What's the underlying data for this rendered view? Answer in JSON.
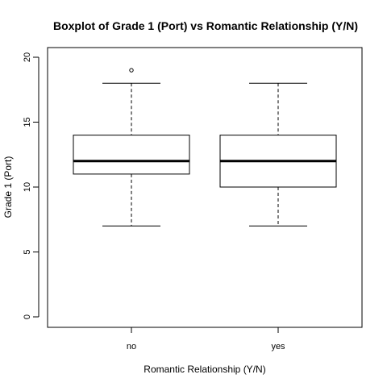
{
  "chart_data": {
    "type": "boxplot",
    "title": "Boxplot of Grade 1 (Port)  vs  Romantic Relationship (Y/N)",
    "xlabel": "Romantic Relationship (Y/N)",
    "ylabel": "Grade 1 (Port)",
    "ylim": [
      0,
      20
    ],
    "yticks": [
      "0",
      "5",
      "10",
      "15",
      "20"
    ],
    "categories": [
      "no",
      "yes"
    ],
    "boxes": [
      {
        "category": "no",
        "min": 7,
        "q1": 11,
        "median": 12,
        "q3": 14,
        "max": 18,
        "outliers": [
          19
        ]
      },
      {
        "category": "yes",
        "min": 7,
        "q1": 10,
        "median": 12,
        "q3": 14,
        "max": 18,
        "outliers": []
      }
    ],
    "grid": false,
    "legend": "none"
  }
}
